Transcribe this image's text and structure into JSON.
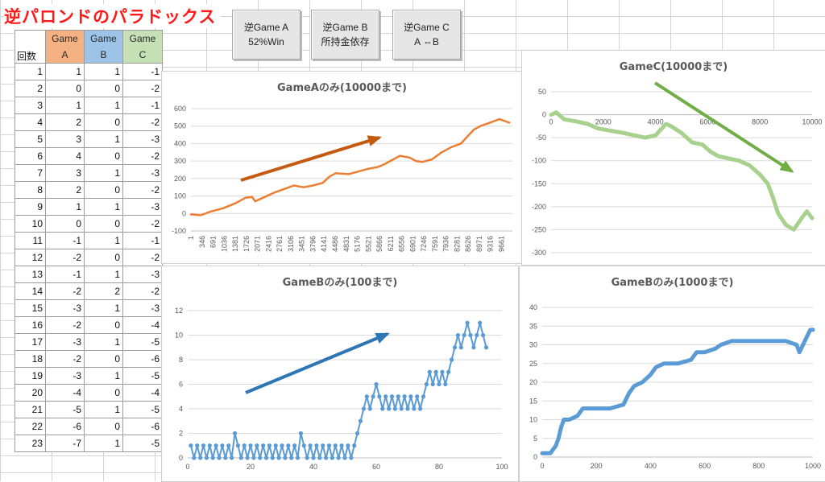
{
  "title": "逆パロンドのパラドックス",
  "buttons": [
    {
      "line1": "逆Game A",
      "line2": "52%Win"
    },
    {
      "line1": "逆Game B",
      "line2": "所持金依存"
    },
    {
      "line1": "逆Game C",
      "line2": "A ⇔B"
    }
  ],
  "sheet": {
    "headers": {
      "count": "回数",
      "a_top": "Game",
      "a_bottom": "A",
      "b_top": "Game",
      "b_bottom": "B",
      "c_top": "Game",
      "c_bottom": "C"
    },
    "rows": [
      [
        "1",
        "1",
        "1",
        "-1"
      ],
      [
        "2",
        "0",
        "0",
        "-2"
      ],
      [
        "3",
        "1",
        "1",
        "-1"
      ],
      [
        "4",
        "2",
        "0",
        "-2"
      ],
      [
        "5",
        "3",
        "1",
        "-3"
      ],
      [
        "6",
        "4",
        "0",
        "-2"
      ],
      [
        "7",
        "3",
        "1",
        "-3"
      ],
      [
        "8",
        "2",
        "0",
        "-2"
      ],
      [
        "9",
        "1",
        "1",
        "-3"
      ],
      [
        "10",
        "0",
        "0",
        "-2"
      ],
      [
        "11",
        "-1",
        "1",
        "-1"
      ],
      [
        "12",
        "-2",
        "0",
        "-2"
      ],
      [
        "13",
        "-1",
        "1",
        "-3"
      ],
      [
        "14",
        "-2",
        "2",
        "-2"
      ],
      [
        "15",
        "-3",
        "1",
        "-3"
      ],
      [
        "16",
        "-2",
        "0",
        "-4"
      ],
      [
        "17",
        "-3",
        "1",
        "-5"
      ],
      [
        "18",
        "-2",
        "0",
        "-6"
      ],
      [
        "19",
        "-3",
        "1",
        "-5"
      ],
      [
        "20",
        "-4",
        "0",
        "-4"
      ],
      [
        "21",
        "-5",
        "1",
        "-5"
      ],
      [
        "22",
        "-6",
        "0",
        "-6"
      ],
      [
        "23",
        "-7",
        "1",
        "-5"
      ]
    ]
  },
  "colors": {
    "orange": "#ed7d31",
    "blue": "#5b9bd5",
    "green": "#a9d18e",
    "arrow_orange": "#c55a11",
    "arrow_blue": "#2e75b6",
    "arrow_green": "#70ad47"
  },
  "chart_data": [
    {
      "id": "gameA",
      "type": "line",
      "title": "GameAのみ(10000まで)",
      "ylim": [
        -100,
        600
      ],
      "yticks": [
        "600",
        "500",
        "400",
        "300",
        "200",
        "100",
        "0",
        "-100"
      ],
      "xticks": [
        "1",
        "346",
        "691",
        "1036",
        "1381",
        "1726",
        "2071",
        "2416",
        "2761",
        "3106",
        "3451",
        "3796",
        "4141",
        "4486",
        "4831",
        "5176",
        "5521",
        "5866",
        "6211",
        "6556",
        "6901",
        "7246",
        "7591",
        "7936",
        "8281",
        "8626",
        "8971",
        "9316",
        "9661"
      ],
      "xlim": [
        0,
        10000
      ],
      "series": [
        {
          "color": "#ed7d31",
          "points": [
            [
              0,
              -5
            ],
            [
              300,
              -10
            ],
            [
              600,
              10
            ],
            [
              1000,
              30
            ],
            [
              1400,
              60
            ],
            [
              1700,
              90
            ],
            [
              1900,
              95
            ],
            [
              2000,
              70
            ],
            [
              2300,
              95
            ],
            [
              2600,
              120
            ],
            [
              2900,
              140
            ],
            [
              3200,
              160
            ],
            [
              3500,
              150
            ],
            [
              3800,
              160
            ],
            [
              4100,
              175
            ],
            [
              4300,
              210
            ],
            [
              4500,
              230
            ],
            [
              4900,
              225
            ],
            [
              5200,
              240
            ],
            [
              5500,
              255
            ],
            [
              5800,
              265
            ],
            [
              6000,
              280
            ],
            [
              6200,
              300
            ],
            [
              6500,
              330
            ],
            [
              6800,
              320
            ],
            [
              7000,
              300
            ],
            [
              7200,
              295
            ],
            [
              7500,
              310
            ],
            [
              7800,
              350
            ],
            [
              8100,
              380
            ],
            [
              8400,
              400
            ],
            [
              8600,
              440
            ],
            [
              8800,
              480
            ],
            [
              9000,
              500
            ],
            [
              9300,
              520
            ],
            [
              9600,
              540
            ],
            [
              9900,
              520
            ]
          ]
        }
      ]
    },
    {
      "id": "gameC",
      "type": "line",
      "title": "GameC(10000まで)",
      "ylim": [
        -300,
        50
      ],
      "yticks": [
        "50",
        "0",
        "-50",
        "-100",
        "-150",
        "-200",
        "-250",
        "-300"
      ],
      "xticks": [
        "0",
        "2000",
        "4000",
        "6000",
        "8000",
        "10000"
      ],
      "xlim": [
        0,
        10000
      ],
      "series": [
        {
          "color": "#a9d18e",
          "points": [
            [
              0,
              0
            ],
            [
              200,
              5
            ],
            [
              500,
              -10
            ],
            [
              1000,
              -15
            ],
            [
              1400,
              -20
            ],
            [
              1800,
              -30
            ],
            [
              2300,
              -35
            ],
            [
              2800,
              -40
            ],
            [
              3200,
              -45
            ],
            [
              3600,
              -50
            ],
            [
              4000,
              -45
            ],
            [
              4400,
              -20
            ],
            [
              4600,
              -25
            ],
            [
              5000,
              -40
            ],
            [
              5400,
              -60
            ],
            [
              5800,
              -65
            ],
            [
              6100,
              -80
            ],
            [
              6400,
              -90
            ],
            [
              6800,
              -95
            ],
            [
              7200,
              -100
            ],
            [
              7600,
              -110
            ],
            [
              8000,
              -130
            ],
            [
              8300,
              -150
            ],
            [
              8500,
              -180
            ],
            [
              8700,
              -215
            ],
            [
              9000,
              -240
            ],
            [
              9300,
              -250
            ],
            [
              9600,
              -225
            ],
            [
              9800,
              -210
            ],
            [
              10000,
              -225
            ]
          ]
        }
      ]
    },
    {
      "id": "gameB100",
      "type": "line",
      "title": "GameBのみ(100まで)",
      "ylim": [
        0,
        12
      ],
      "yticks": [
        "12",
        "10",
        "8",
        "6",
        "4",
        "2",
        "0"
      ],
      "xticks": [
        "0",
        "20",
        "40",
        "60",
        "80",
        "100"
      ],
      "xlim": [
        0,
        100
      ],
      "series": [
        {
          "color": "#5b9bd5",
          "values": [
            1,
            0,
            1,
            0,
            1,
            0,
            1,
            0,
            1,
            0,
            1,
            0,
            1,
            0,
            2,
            1,
            0,
            1,
            0,
            1,
            0,
            1,
            0,
            1,
            0,
            1,
            0,
            1,
            0,
            1,
            0,
            1,
            0,
            1,
            0,
            2,
            1,
            0,
            1,
            0,
            1,
            0,
            1,
            0,
            1,
            0,
            1,
            0,
            1,
            0,
            1,
            0,
            1,
            2,
            3,
            4,
            5,
            4,
            5,
            6,
            5,
            4,
            5,
            4,
            5,
            4,
            5,
            4,
            5,
            4,
            5,
            4,
            5,
            4,
            5,
            6,
            7,
            6,
            7,
            6,
            7,
            6,
            7,
            8,
            9,
            10,
            9,
            10,
            11,
            10,
            9,
            10,
            11,
            10,
            9
          ]
        }
      ]
    },
    {
      "id": "gameB1000",
      "type": "scatter",
      "title": "GameBのみ(1000まで)",
      "ylim": [
        0,
        40
      ],
      "yticks": [
        "40",
        "35",
        "30",
        "25",
        "20",
        "15",
        "10",
        "5",
        "0"
      ],
      "xticks": [
        "0",
        "200",
        "400",
        "600",
        "800",
        "1000"
      ],
      "xlim": [
        0,
        1000
      ],
      "series": [
        {
          "color": "#5b9bd5",
          "points": [
            [
              0,
              1
            ],
            [
              30,
              1
            ],
            [
              50,
              3
            ],
            [
              60,
              5
            ],
            [
              70,
              8
            ],
            [
              80,
              10
            ],
            [
              100,
              10
            ],
            [
              130,
              11
            ],
            [
              150,
              13
            ],
            [
              200,
              13
            ],
            [
              250,
              13
            ],
            [
              300,
              14
            ],
            [
              320,
              17
            ],
            [
              340,
              19
            ],
            [
              370,
              20
            ],
            [
              400,
              22
            ],
            [
              420,
              24
            ],
            [
              450,
              25
            ],
            [
              500,
              25
            ],
            [
              550,
              26
            ],
            [
              570,
              28
            ],
            [
              600,
              28
            ],
            [
              640,
              29
            ],
            [
              660,
              30
            ],
            [
              700,
              31
            ],
            [
              750,
              31
            ],
            [
              800,
              31
            ],
            [
              850,
              31
            ],
            [
              900,
              31
            ],
            [
              940,
              30
            ],
            [
              950,
              28
            ],
            [
              970,
              31
            ],
            [
              990,
              34
            ],
            [
              1000,
              34
            ]
          ]
        }
      ]
    }
  ]
}
